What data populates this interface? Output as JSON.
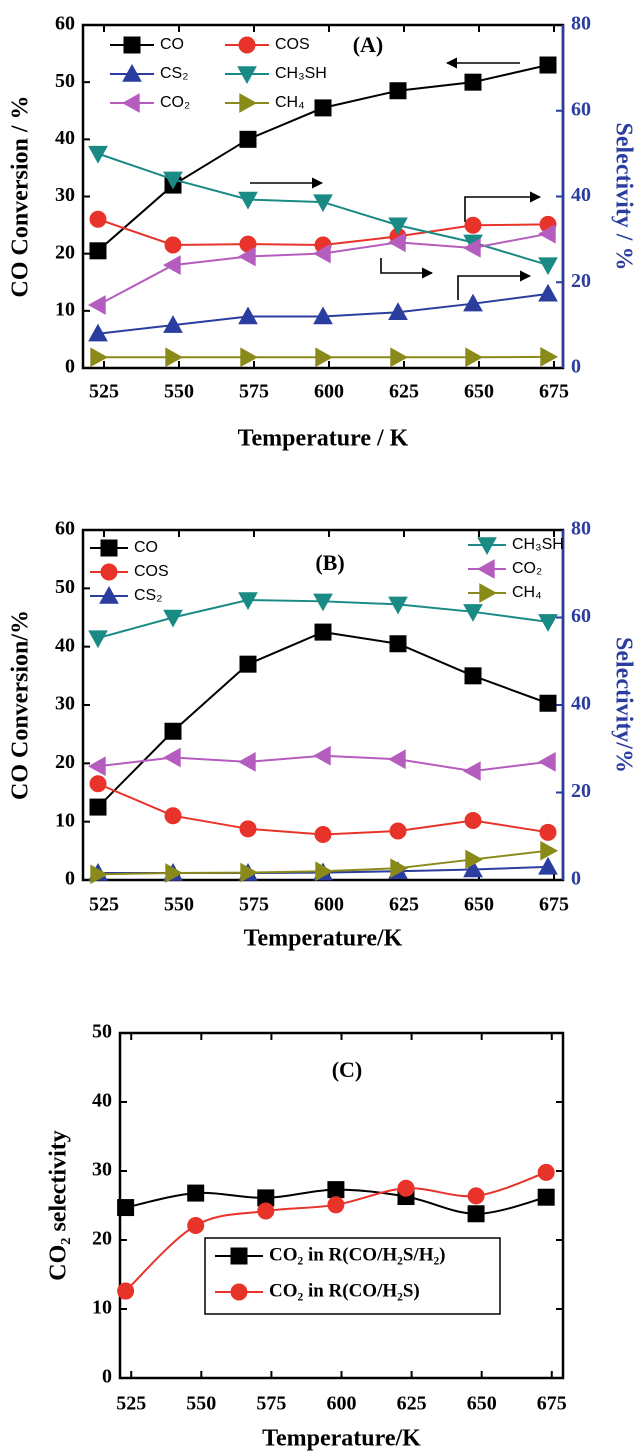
{
  "chart_data": [
    {
      "type": "line",
      "annotation": "(A)",
      "xlabel": "Temperature / K",
      "ylabel": "CO Conversion / %",
      "y2label": "Selectivity / %",
      "x": [
        523,
        548,
        573,
        598,
        623,
        648,
        673
      ],
      "xlim": [
        518,
        678
      ],
      "xticks": [
        525,
        550,
        575,
        600,
        625,
        650,
        675
      ],
      "ylim": [
        0,
        60
      ],
      "yticks": [
        0,
        10,
        20,
        30,
        40,
        50,
        60
      ],
      "y2lim": [
        0,
        80
      ],
      "y2ticks": [
        0,
        20,
        40,
        60,
        80
      ],
      "y2color": "#2b3d9e",
      "series": [
        {
          "name": "CO",
          "color": "#000000",
          "marker": "square",
          "values": [
            20.5,
            32,
            40,
            45.5,
            48.5,
            50,
            53
          ]
        },
        {
          "name": "COS",
          "color": "#e8332a",
          "marker": "circle",
          "axis": "y2",
          "values": [
            34.7,
            28.7,
            28.9,
            28.7,
            30.7,
            33.3,
            33.5
          ]
        },
        {
          "name": "CS₂",
          "color": "#2b3d9e",
          "marker": "triangle-up",
          "axis": "y2",
          "values": [
            8,
            10,
            12,
            12,
            13,
            15,
            17.3
          ]
        },
        {
          "name": "CH₃SH",
          "color": "#1a8a85",
          "marker": "triangle-down",
          "axis": "y2",
          "values": [
            50,
            44,
            39.3,
            38.7,
            33.3,
            29.3,
            24
          ]
        },
        {
          "name": "CO₂",
          "color": "#b55dbf",
          "marker": "triangle-left",
          "axis": "y2",
          "values": [
            14.7,
            24,
            26,
            26.7,
            29.3,
            28,
            31.3
          ]
        },
        {
          "name": "CH₄",
          "color": "#8a8a1a",
          "marker": "triangle-right",
          "axis": "y2",
          "values": [
            2.5,
            2.5,
            2.5,
            2.5,
            2.5,
            2.5,
            2.6
          ]
        }
      ]
    },
    {
      "type": "line",
      "annotation": "(B)",
      "xlabel": "Temperature/K",
      "ylabel": "CO Conversion/%",
      "y2label": "Selectivity/%",
      "x": [
        523,
        548,
        573,
        598,
        623,
        648,
        673
      ],
      "xlim": [
        518,
        678
      ],
      "xticks": [
        525,
        550,
        575,
        600,
        625,
        650,
        675
      ],
      "ylim": [
        0,
        60
      ],
      "yticks": [
        0,
        10,
        20,
        30,
        40,
        50,
        60
      ],
      "y2lim": [
        0,
        80
      ],
      "y2ticks": [
        0,
        20,
        40,
        60,
        80
      ],
      "y2color": "#2b3d9e",
      "series": [
        {
          "name": "CO",
          "color": "#000000",
          "marker": "square",
          "values": [
            12.5,
            25.5,
            37,
            42.5,
            40.5,
            35,
            30.3
          ]
        },
        {
          "name": "COS",
          "color": "#e8332a",
          "marker": "circle",
          "axis": "y2",
          "values": [
            22,
            14.7,
            11.7,
            10.4,
            11.2,
            13.6,
            10.9
          ]
        },
        {
          "name": "CS₂",
          "color": "#2b3d9e",
          "marker": "triangle-up",
          "axis": "y2",
          "values": [
            1.6,
            1.6,
            1.6,
            1.7,
            2,
            2.4,
            3
          ]
        },
        {
          "name": "CH₃SH",
          "color": "#1a8a85",
          "marker": "triangle-down",
          "axis": "y2",
          "values": [
            55.3,
            60,
            64,
            63.7,
            63,
            61.3,
            59
          ]
        },
        {
          "name": "CO₂",
          "color": "#b55dbf",
          "marker": "triangle-left",
          "axis": "y2",
          "values": [
            26,
            28,
            27,
            28.4,
            27.6,
            24.9,
            27
          ]
        },
        {
          "name": "CH₄",
          "color": "#8a8a1a",
          "marker": "triangle-right",
          "axis": "y2",
          "values": [
            1.3,
            1.6,
            1.7,
            2,
            2.7,
            4.7,
            6.7
          ]
        }
      ]
    },
    {
      "type": "line",
      "annotation": "(C)",
      "smooth": true,
      "xlabel": "Temperature/K",
      "ylabel": "CO₂ selectivity",
      "x": [
        523,
        548,
        573,
        598,
        623,
        648,
        673
      ],
      "xlim": [
        521,
        679
      ],
      "xticks": [
        525,
        550,
        575,
        600,
        625,
        650,
        675
      ],
      "ylim": [
        0,
        50
      ],
      "yticks": [
        0,
        10,
        20,
        30,
        40,
        50
      ],
      "series": [
        {
          "name": "CO₂ in R(CO/H₂S/H₂)",
          "color": "#000000",
          "marker": "square",
          "values": [
            24.7,
            26.8,
            26.1,
            27.3,
            26.3,
            23.8,
            26.2
          ]
        },
        {
          "name": "CO₂ in R(CO/H₂S)",
          "color": "#e8332a",
          "marker": "circle",
          "values": [
            12.6,
            22.1,
            24.2,
            25.1,
            27.5,
            26.4,
            29.8
          ]
        }
      ]
    }
  ]
}
